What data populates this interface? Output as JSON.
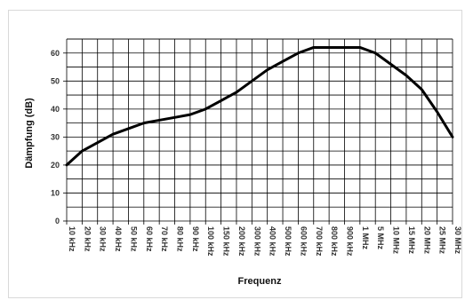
{
  "chart_data": {
    "type": "line",
    "xlabel": "Frequenz",
    "ylabel": "Dämpfung (dB)",
    "ylim": [
      0,
      65
    ],
    "yticks": [
      0,
      10,
      20,
      30,
      40,
      50,
      60
    ],
    "grid": true,
    "categories": [
      "10 kHz",
      "20 kHz",
      "30 kHz",
      "40 kHz",
      "50 kHz",
      "60 kHz",
      "70 kHz",
      "80 kHz",
      "90 kHz",
      "100 kHz",
      "150 kHz",
      "200 kHz",
      "300 kHz",
      "400 kHz",
      "500 kHz",
      "600 kHz",
      "700 kHz",
      "800 kHz",
      "900 kHz",
      "1 MHz",
      "5 MHz",
      "10 MHz",
      "15 MHz",
      "20 MHz",
      "25 MHz",
      "30 MHz"
    ],
    "series": [
      {
        "values": [
          20,
          25,
          28,
          31,
          33,
          35,
          36,
          37,
          38,
          40,
          43,
          46,
          50,
          54,
          57,
          60,
          62,
          62,
          62,
          62,
          60,
          56,
          52,
          47,
          39,
          30
        ],
        "color": "#000000"
      }
    ]
  }
}
